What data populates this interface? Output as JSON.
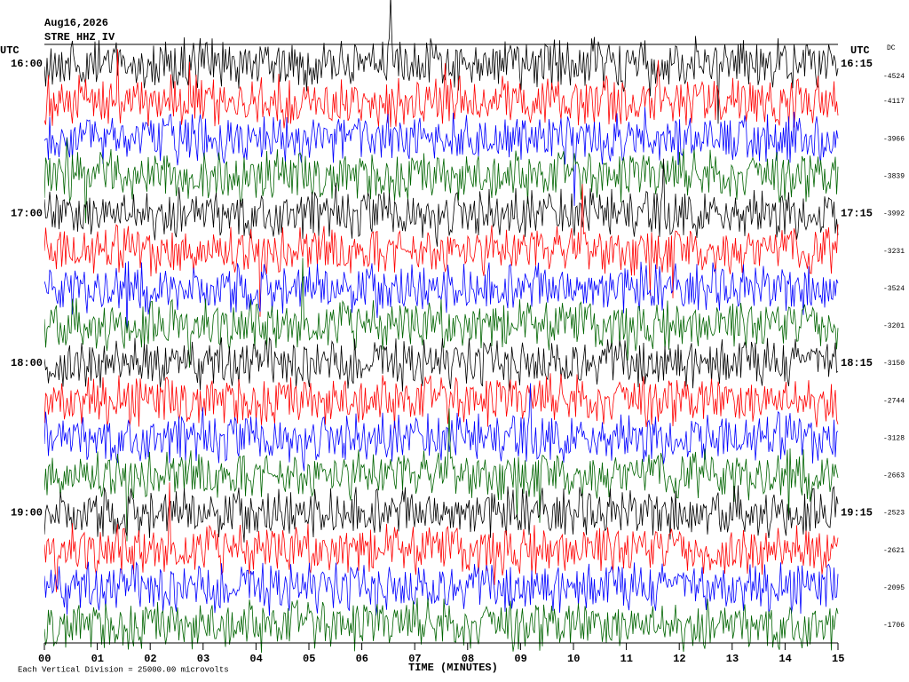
{
  "header": {
    "date": "Aug16,2026",
    "station": "STRE HHZ IV"
  },
  "left_axis": {
    "title": "UTC",
    "labels": [
      "16:00",
      "17:00",
      "18:00",
      "19:00"
    ]
  },
  "right_axis": {
    "title": "UTC",
    "labels": [
      "16:15",
      "17:15",
      "18:15",
      "19:15"
    ]
  },
  "dc": {
    "title": "DC",
    "values": [
      -4524,
      -4117,
      -3966,
      -3839,
      -3992,
      -3231,
      -3524,
      -3201,
      -3150,
      -2744,
      -3128,
      -2663,
      -2523,
      -2621,
      -2095,
      -1706
    ]
  },
  "x_axis": {
    "title": "TIME (MINUTES)",
    "labels": [
      "00",
      "01",
      "02",
      "03",
      "04",
      "05",
      "06",
      "07",
      "08",
      "09",
      "10",
      "11",
      "12",
      "13",
      "14",
      "15"
    ]
  },
  "footnote": "Each Vertical Division = 25000.00 microvolts"
}
